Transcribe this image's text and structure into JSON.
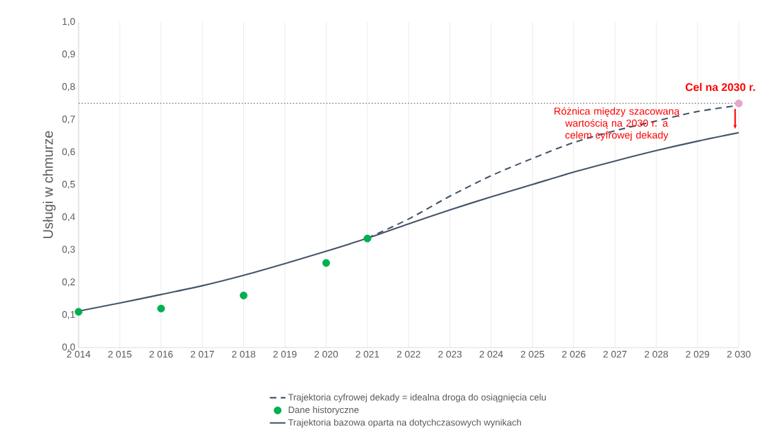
{
  "chart_data": {
    "type": "line",
    "ylabel": "Usługi w chmurze",
    "xlim": [
      2014,
      2030
    ],
    "ylim": [
      0,
      1.0
    ],
    "xticks": [
      {
        "value": 2014,
        "label": "2 014"
      },
      {
        "value": 2015,
        "label": "2 015"
      },
      {
        "value": 2016,
        "label": "2 016"
      },
      {
        "value": 2017,
        "label": "2 017"
      },
      {
        "value": 2018,
        "label": "2 018"
      },
      {
        "value": 2019,
        "label": "2 019"
      },
      {
        "value": 2020,
        "label": "2 020"
      },
      {
        "value": 2021,
        "label": "2 021"
      },
      {
        "value": 2022,
        "label": "2 022"
      },
      {
        "value": 2023,
        "label": "2 023"
      },
      {
        "value": 2024,
        "label": "2 024"
      },
      {
        "value": 2025,
        "label": "2 025"
      },
      {
        "value": 2026,
        "label": "2 026"
      },
      {
        "value": 2027,
        "label": "2 027"
      },
      {
        "value": 2028,
        "label": "2 028"
      },
      {
        "value": 2029,
        "label": "2 029"
      },
      {
        "value": 2030,
        "label": "2 030"
      }
    ],
    "yticks": [
      {
        "value": 0,
        "label": "0,0"
      },
      {
        "value": 0.1,
        "label": "0,1"
      },
      {
        "value": 0.2,
        "label": "0,2"
      },
      {
        "value": 0.3,
        "label": "0,3"
      },
      {
        "value": 0.4,
        "label": "0,4"
      },
      {
        "value": 0.5,
        "label": "0,5"
      },
      {
        "value": 0.6,
        "label": "0,6"
      },
      {
        "value": 0.7,
        "label": "0,7"
      },
      {
        "value": 0.8,
        "label": "0,8"
      },
      {
        "value": 0.9,
        "label": "0,9"
      },
      {
        "value": 1.0,
        "label": "1,0"
      }
    ],
    "grid": "x",
    "legend": "bottom",
    "series": [
      {
        "name": "Trajektoria cyfrowej dekady = idealna droga do osiągnięcia celu",
        "color": "#44546a",
        "line_style": "dashed",
        "marker": "none",
        "x": [
          2021,
          2022,
          2023,
          2024,
          2025,
          2026,
          2027,
          2028,
          2029,
          2030
        ],
        "values": [
          0.336,
          0.395,
          0.465,
          0.528,
          0.581,
          0.63,
          0.666,
          0.696,
          0.725,
          0.744
        ]
      },
      {
        "name": "Dane historyczne",
        "type": "scatter",
        "color": "#00b050",
        "marker": "circle",
        "x": [
          2014,
          2016,
          2018,
          2020,
          2021
        ],
        "values": [
          0.11,
          0.12,
          0.16,
          0.26,
          0.335
        ]
      },
      {
        "name": "Trajektoria bazowa oparta na dotychczasowych wynikach",
        "color": "#44546a",
        "line_style": "solid",
        "marker": "none",
        "x": [
          2014,
          2015,
          2016,
          2017,
          2018,
          2019,
          2020,
          2021,
          2022,
          2023,
          2024,
          2025,
          2026,
          2027,
          2028,
          2029,
          2030
        ],
        "values": [
          0.112,
          0.137,
          0.163,
          0.19,
          0.222,
          0.258,
          0.296,
          0.336,
          0.38,
          0.423,
          0.463,
          0.501,
          0.539,
          0.573,
          0.605,
          0.634,
          0.66
        ]
      },
      {
        "type": "scatter",
        "color": "#e8a6c6",
        "marker": "circle",
        "x": [
          2030
        ],
        "values": [
          0.75
        ]
      }
    ],
    "ref_lines": [
      {
        "axis": "y",
        "value": 0.75,
        "color": "#8c8c8c",
        "line_style": "dotted"
      }
    ],
    "annotations": [
      {
        "text": "Cel na 2030 r.",
        "x": 2030,
        "y": 0.75
      },
      "Różnica między szacowaną wartością na 2030 r. a celem cyfrowej dekady"
    ]
  }
}
